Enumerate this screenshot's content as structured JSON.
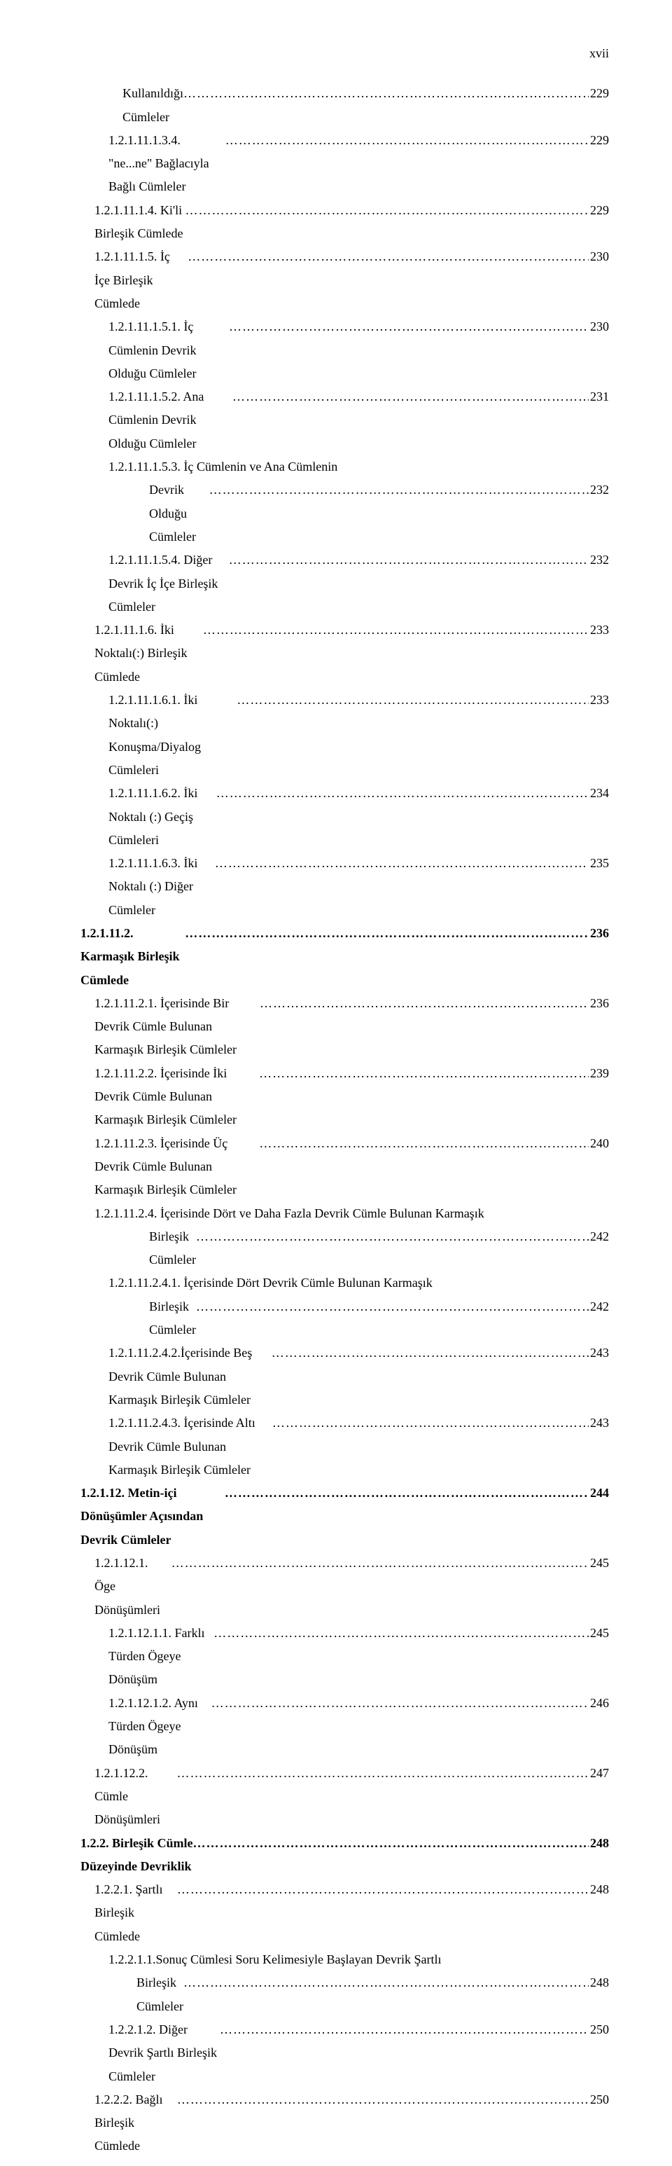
{
  "page_number_label": "xvii",
  "entries": [
    {
      "indent": 3,
      "bold": false,
      "text": "Kullanıldığı Cümleler",
      "page": "229"
    },
    {
      "indent": 2,
      "bold": false,
      "text": "1.2.1.11.1.3.4. \"ne...ne\" Bağlacıyla Bağlı Cümleler",
      "page": "229"
    },
    {
      "indent": 1,
      "bold": false,
      "text": "1.2.1.11.1.4. Ki'li Birleşik Cümlede",
      "page": "229"
    },
    {
      "indent": 1,
      "bold": false,
      "text": "1.2.1.11.1.5. İç İçe Birleşik Cümlede",
      "page": "230"
    },
    {
      "indent": 2,
      "bold": false,
      "text": "1.2.1.11.1.5.1. İç Cümlenin Devrik Olduğu Cümleler",
      "page": "230"
    },
    {
      "indent": 2,
      "bold": false,
      "text": "1.2.1.11.1.5.2. Ana Cümlenin Devrik Olduğu Cümleler",
      "page": "231"
    },
    {
      "indent": 2,
      "bold": false,
      "wrap": true,
      "text": "1.2.1.11.1.5.3. İç Cümlenin ve Ana Cümlenin",
      "cont_indent": 5,
      "cont_text": "Devrik Olduğu Cümleler",
      "page": "232"
    },
    {
      "indent": 2,
      "bold": false,
      "text": "1.2.1.11.1.5.4. Diğer Devrik İç İçe Birleşik Cümleler",
      "page": "232"
    },
    {
      "indent": 1,
      "bold": false,
      "text": "1.2.1.11.1.6. İki Noktalı(:) Birleşik Cümlede",
      "page": "233"
    },
    {
      "indent": 2,
      "bold": false,
      "text": "1.2.1.11.1.6.1. İki Noktalı(:) Konuşma/Diyalog Cümleleri",
      "page": "233"
    },
    {
      "indent": 2,
      "bold": false,
      "text": "1.2.1.11.1.6.2. İki Noktalı (:) Geçiş Cümleleri",
      "page": "234"
    },
    {
      "indent": 2,
      "bold": false,
      "text": "1.2.1.11.1.6.3. İki Noktalı (:) Diğer Cümleler",
      "page": "235"
    },
    {
      "indent": 0,
      "bold": true,
      "text": "1.2.1.11.2. Karmaşık Birleşik Cümlede",
      "page": "236"
    },
    {
      "indent": 1,
      "bold": false,
      "text": "1.2.1.11.2.1. İçerisinde Bir Devrik Cümle Bulunan Karmaşık Birleşik Cümleler",
      "page": "236"
    },
    {
      "indent": 1,
      "bold": false,
      "text": "1.2.1.11.2.2. İçerisinde İki Devrik Cümle Bulunan Karmaşık Birleşik Cümleler",
      "page": "239"
    },
    {
      "indent": 1,
      "bold": false,
      "text": "1.2.1.11.2.3. İçerisinde Üç Devrik Cümle Bulunan Karmaşık Birleşik Cümleler",
      "page": "240"
    },
    {
      "indent": 1,
      "bold": false,
      "wrap": true,
      "text": "1.2.1.11.2.4. İçerisinde Dört ve Daha Fazla Devrik Cümle Bulunan Karmaşık",
      "cont_indent": 5,
      "cont_text": "Birleşik Cümleler",
      "page": "242"
    },
    {
      "indent": 2,
      "bold": false,
      "wrap": true,
      "text": "1.2.1.11.2.4.1. İçerisinde Dört Devrik Cümle Bulunan Karmaşık",
      "cont_indent": 5,
      "cont_text": "Birleşik Cümleler",
      "page": "242"
    },
    {
      "indent": 2,
      "bold": false,
      "text": "1.2.1.11.2.4.2.İçerisinde Beş Devrik Cümle Bulunan Karmaşık Birleşik Cümleler",
      "page": "243"
    },
    {
      "indent": 2,
      "bold": false,
      "text": "1.2.1.11.2.4.3. İçerisinde Altı Devrik Cümle Bulunan Karmaşık Birleşik Cümleler",
      "page": "243"
    },
    {
      "indent": 0,
      "bold": true,
      "text": "1.2.1.12. Metin-içi Dönüşümler Açısından Devrik Cümleler",
      "page": "244"
    },
    {
      "indent": 1,
      "bold": false,
      "text": "1.2.1.12.1. Öge Dönüşümleri",
      "page": "245"
    },
    {
      "indent": 2,
      "bold": false,
      "text": "1.2.1.12.1.1. Farklı Türden Ögeye Dönüşüm",
      "page": "245"
    },
    {
      "indent": 2,
      "bold": false,
      "text": "1.2.1.12.1.2. Aynı Türden Ögeye Dönüşüm",
      "page": "246"
    },
    {
      "indent": 1,
      "bold": false,
      "text": "1.2.1.12.2. Cümle Dönüşümleri",
      "page": "247"
    },
    {
      "indent": 0,
      "bold": true,
      "text": "1.2.2. Birleşik Cümle Düzeyinde Devriklik",
      "page": "248"
    },
    {
      "indent": 1,
      "bold": false,
      "text": "1.2.2.1. Şartlı Birleşik Cümlede",
      "page": "248"
    },
    {
      "indent": 2,
      "bold": false,
      "wrap": true,
      "text": "1.2.2.1.1.Sonuç Cümlesi Soru Kelimesiyle Başlayan Devrik Şartlı",
      "cont_indent": 4,
      "cont_text": "Birleşik  Cümleler ",
      "page": "248"
    },
    {
      "indent": 2,
      "bold": false,
      "text": "1.2.2.1.2. Diğer Devrik Şartlı Birleşik Cümleler",
      "page": "250"
    },
    {
      "indent": 1,
      "bold": false,
      "text": "1.2.2.2. Bağlı Birleşik Cümlede",
      "page": "250"
    }
  ]
}
